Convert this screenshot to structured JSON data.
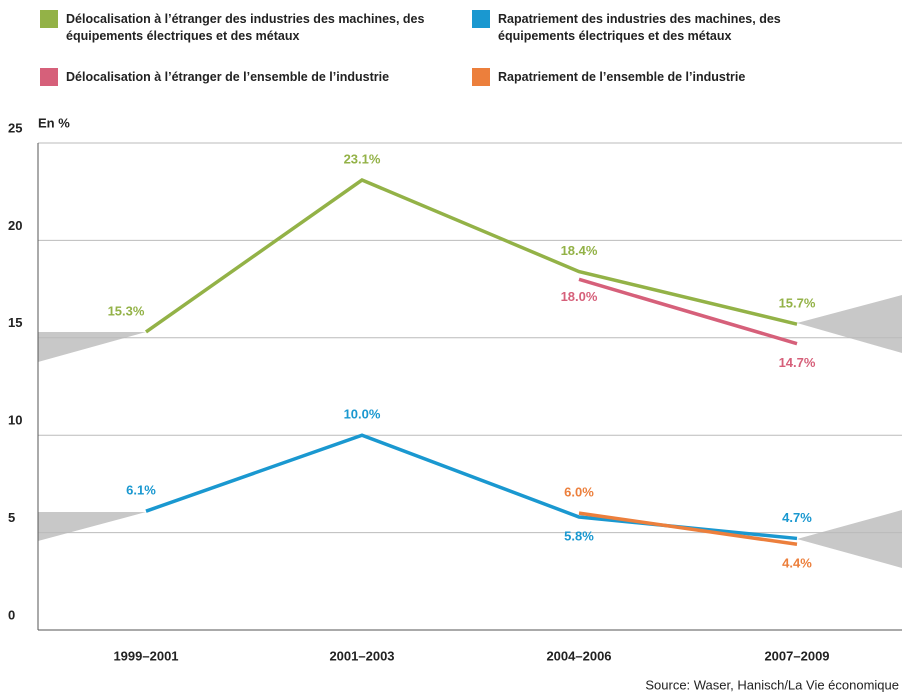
{
  "chart_data": {
    "type": "line",
    "y_label": "En %",
    "source": "Source: Waser, Hanisch/La Vie économique",
    "categories": [
      "1999–2001",
      "2001–2003",
      "2004–2006",
      "2007–2009"
    ],
    "ylim": [
      0,
      25
    ],
    "yticks": [
      0,
      5,
      10,
      15,
      20,
      25
    ],
    "grid": true,
    "series": [
      {
        "name": "Délocalisation à l’étranger des industries des machines, des équipements électriques et des métaux",
        "color": "#93b247",
        "values": [
          15.3,
          23.1,
          18.4,
          15.7
        ],
        "value_labels": [
          "15.3%",
          "23.1%",
          "18.4%",
          "15.7%"
        ]
      },
      {
        "name": "Rapatriement des industries des machines, des équipements électriques et des métaux",
        "color": "#1a98d0",
        "values": [
          6.1,
          10.0,
          5.8,
          4.7
        ],
        "value_labels": [
          "6.1%",
          "10.0%",
          "5.8%",
          "4.7%"
        ]
      },
      {
        "name": "Délocalisation à l’étranger de l’ensemble de l’industrie",
        "color": "#d6607a",
        "values": [
          null,
          null,
          18.0,
          14.7
        ],
        "value_labels": [
          null,
          null,
          "18.0%",
          "14.7%"
        ]
      },
      {
        "name": "Rapatriement de l’ensemble de l’industrie",
        "color": "#ec7f3c",
        "values": [
          null,
          null,
          6.0,
          4.4
        ],
        "value_labels": [
          null,
          null,
          "6.0%",
          "4.4%"
        ]
      }
    ]
  }
}
